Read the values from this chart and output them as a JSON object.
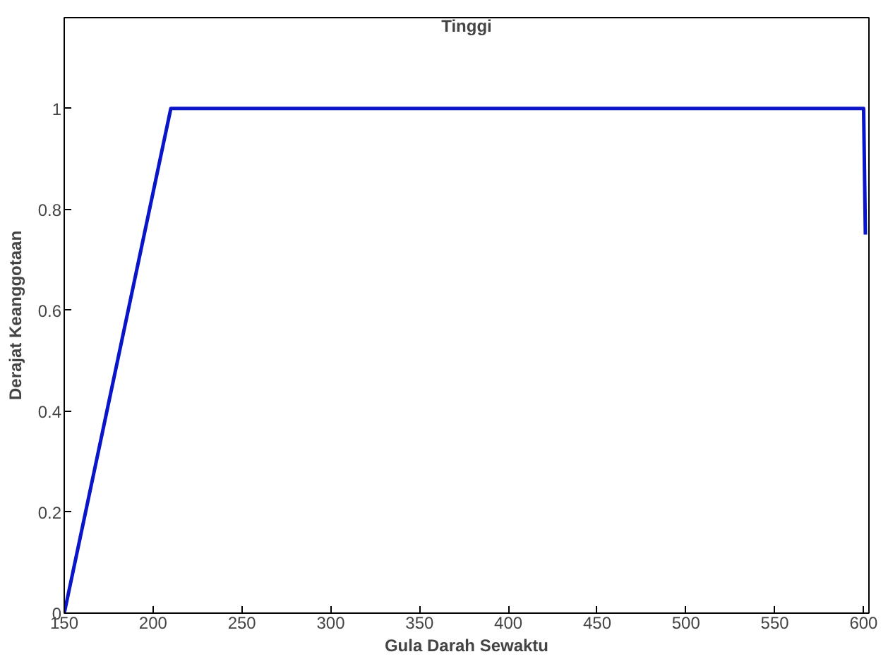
{
  "chart_data": {
    "type": "line",
    "title": "Tinggi",
    "xlabel": "Gula Darah Sewaktu",
    "ylabel": "Derajat Keanggotaan",
    "x": [
      150,
      210,
      600,
      601
    ],
    "series": [
      {
        "color": "#0a14c8",
        "values": [
          0,
          1,
          1,
          0.75
        ]
      }
    ],
    "xlim": [
      150,
      603
    ],
    "ylim": [
      0,
      1.18
    ],
    "xticks": [
      150,
      200,
      250,
      300,
      350,
      400,
      450,
      500,
      550,
      600
    ],
    "yticks": [
      0,
      0.2,
      0.4,
      0.6,
      0.8,
      1
    ],
    "grid": false,
    "marker": "none",
    "line_style": "solid"
  }
}
